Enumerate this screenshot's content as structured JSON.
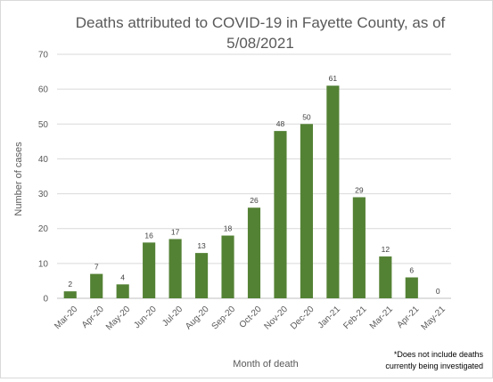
{
  "chart_data": {
    "type": "bar",
    "title_lines": [
      "Deaths attributed to COVID-19 in Fayette County, as of",
      "5/08/2021"
    ],
    "xlabel": "Month of death",
    "ylabel": "Number of cases",
    "categories": [
      "Mar-20",
      "Apr-20",
      "May-20",
      "Jun-20",
      "Jul-20",
      "Aug-20",
      "Sep-20",
      "Oct-20",
      "Nov-20",
      "Dec-20",
      "Jan-21",
      "Feb-21",
      "Mar-21",
      "Apr-21",
      "May-21"
    ],
    "values": [
      2,
      7,
      4,
      16,
      17,
      13,
      18,
      26,
      48,
      50,
      61,
      29,
      12,
      6,
      0
    ],
    "data_labels": [
      "2",
      "7",
      "4",
      "16",
      "17",
      "13",
      "18",
      "26",
      "48",
      "50",
      "61",
      "29",
      "12",
      "6",
      "0"
    ],
    "ylim": [
      0,
      70
    ],
    "yticks": [
      0,
      10,
      20,
      30,
      40,
      50,
      60,
      70
    ],
    "ytick_labels": [
      "0",
      "10",
      "20",
      "30",
      "40",
      "50",
      "60",
      "70"
    ],
    "grid": true,
    "bar_color": "#548235",
    "note_lines": [
      "*Does not include deaths",
      "currently being investigated"
    ]
  }
}
